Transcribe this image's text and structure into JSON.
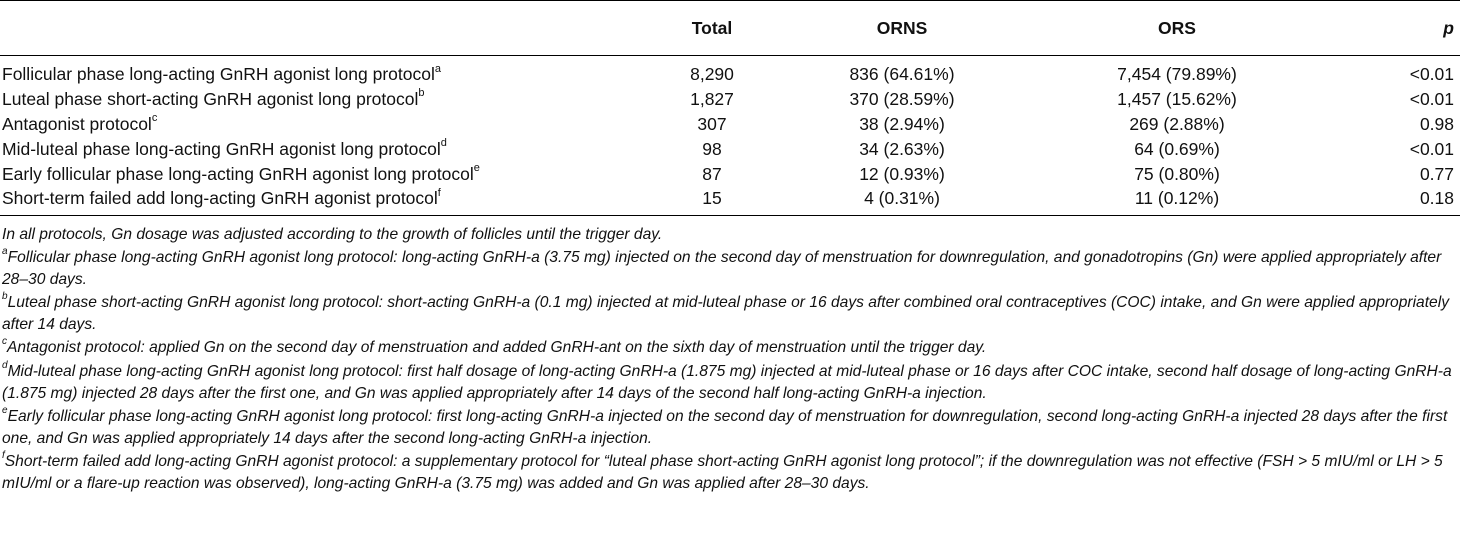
{
  "table": {
    "headers": {
      "label": "",
      "total": "Total",
      "orns": "ORNS",
      "ors": "ORS",
      "p": "p"
    },
    "rows": [
      {
        "label": "Follicular phase long-acting GnRH agonist long protocol",
        "mark": "a",
        "total": "8,290",
        "orns": "836 (64.61%)",
        "ors": "7,454 (79.89%)",
        "p": "<0.01"
      },
      {
        "label": "Luteal phase short-acting GnRH agonist long protocol",
        "mark": "b",
        "total": "1,827",
        "orns": "370 (28.59%)",
        "ors": "1,457 (15.62%)",
        "p": "<0.01"
      },
      {
        "label": "Antagonist protocol",
        "mark": "c",
        "total": "307",
        "orns": "38 (2.94%)",
        "ors": "269 (2.88%)",
        "p": "0.98"
      },
      {
        "label": "Mid-luteal phase long-acting GnRH agonist long protocol",
        "mark": "d",
        "total": "98",
        "orns": "34 (2.63%)",
        "ors": "64 (0.69%)",
        "p": "<0.01"
      },
      {
        "label": "Early follicular phase long-acting GnRH agonist long protocol",
        "mark": "e",
        "total": "87",
        "orns": "12 (0.93%)",
        "ors": "75 (0.80%)",
        "p": "0.77"
      },
      {
        "label": "Short-term failed add long-acting GnRH agonist protocol",
        "mark": "f",
        "total": "15",
        "orns": "4 (0.31%)",
        "ors": "11 (0.12%)",
        "p": "0.18"
      }
    ]
  },
  "notes": {
    "intro": "In all protocols, Gn dosage was adjusted according to the growth of follicles until the trigger day.",
    "items": [
      {
        "mark": "a",
        "text": "Follicular phase long-acting GnRH agonist long protocol: long-acting GnRH-a (3.75 mg) injected on the second day of menstruation for downregulation, and gonadotropins (Gn) were applied appropriately after 28–30 days."
      },
      {
        "mark": "b",
        "text": "Luteal phase short-acting GnRH agonist long protocol: short-acting GnRH-a (0.1 mg) injected at mid-luteal phase or 16 days after combined oral contraceptives (COC) intake, and Gn were applied appropriately after 14 days."
      },
      {
        "mark": "c",
        "text": "Antagonist protocol: applied Gn on the second day of menstruation and added GnRH-ant on the sixth day of menstruation until the trigger day."
      },
      {
        "mark": "d",
        "text": "Mid-luteal phase long-acting GnRH agonist long protocol: first half dosage of long-acting GnRH-a (1.875 mg) injected at mid-luteal phase or 16 days after COC intake, second half dosage of long-acting GnRH-a (1.875 mg) injected 28 days after the first one, and Gn was applied appropriately after 14 days of the second half long-acting GnRH-a injection."
      },
      {
        "mark": "e",
        "text": "Early follicular phase long-acting GnRH agonist long protocol: first long-acting GnRH-a injected on the second day of menstruation for downregulation, second long-acting GnRH-a injected 28 days after the first one, and Gn was applied appropriately 14 days after the second long-acting GnRH-a injection."
      },
      {
        "mark": "f",
        "text": "Short-term failed add long-acting GnRH agonist protocol: a supplementary protocol for “luteal phase short-acting GnRH agonist long protocol”; if the downregulation was not effective (FSH > 5 mIU/ml or LH > 5 mIU/ml or a flare-up reaction was observed), long-acting GnRH-a (3.75 mg) was added and Gn was applied after 28–30 days."
      }
    ]
  }
}
